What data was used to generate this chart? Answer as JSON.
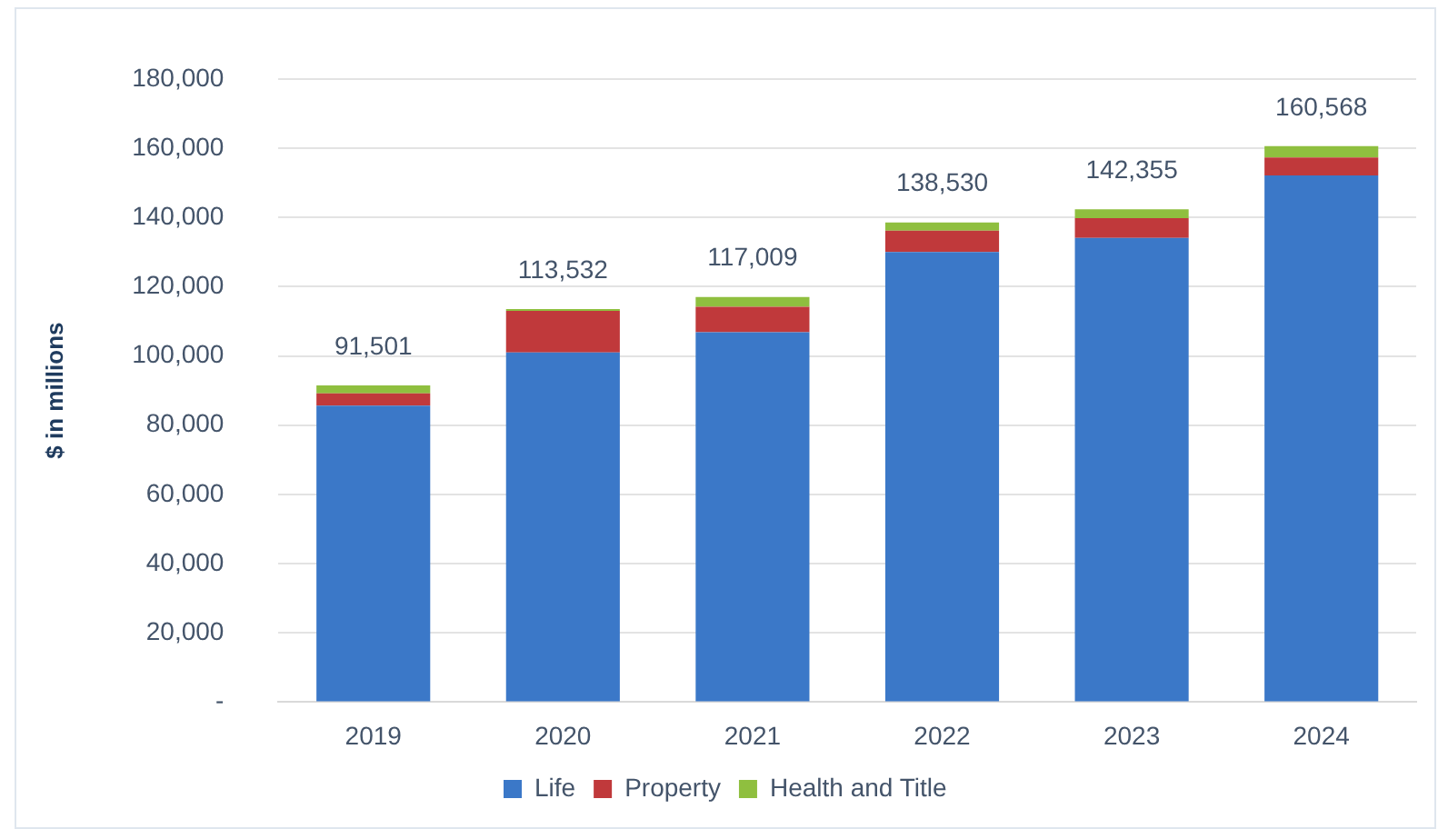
{
  "chart_data": {
    "type": "bar",
    "stacked": true,
    "ylabel": "$ in millions",
    "categories": [
      "2019",
      "2020",
      "2021",
      "2022",
      "2023",
      "2024"
    ],
    "series": [
      {
        "name": "Life",
        "color": "#3b78c8",
        "values": [
          85600,
          101000,
          106800,
          130000,
          134100,
          152100
        ]
      },
      {
        "name": "Property",
        "color": "#c0393b",
        "values": [
          3600,
          12000,
          7400,
          6200,
          5700,
          5200
        ]
      },
      {
        "name": "Health and Title",
        "color": "#8fbf3f",
        "values": [
          2301,
          532,
          2809,
          2330,
          2555,
          3268
        ]
      }
    ],
    "totals": [
      "91,501",
      "113,532",
      "117,009",
      "138,530",
      "142,355",
      "160,568"
    ],
    "ylim": [
      0,
      180000
    ],
    "yticks": [
      {
        "value": 0,
        "label": "-"
      },
      {
        "value": 20000,
        "label": "20,000"
      },
      {
        "value": 40000,
        "label": "40,000"
      },
      {
        "value": 60000,
        "label": "60,000"
      },
      {
        "value": 80000,
        "label": "80,000"
      },
      {
        "value": 100000,
        "label": "100,000"
      },
      {
        "value": 120000,
        "label": "120,000"
      },
      {
        "value": 140000,
        "label": "140,000"
      },
      {
        "value": 160000,
        "label": "160,000"
      },
      {
        "value": 180000,
        "label": "180,000"
      }
    ],
    "grid": "y",
    "legend": "bottom"
  }
}
